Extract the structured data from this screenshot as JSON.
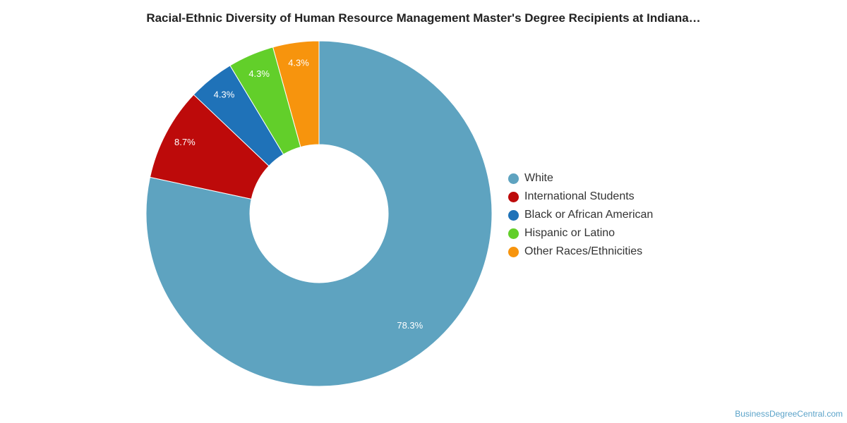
{
  "chart_data": {
    "type": "pie",
    "title": "Racial-Ethnic Diversity of Human Resource Management Master's Degree Recipients at Indiana…",
    "donut": true,
    "legend_position": "right",
    "slices": [
      {
        "label": "White",
        "value": 78.3,
        "display": "78.3%",
        "color": "#5ea3c0"
      },
      {
        "label": "International Students",
        "value": 8.7,
        "display": "8.7%",
        "color": "#bd0a0a"
      },
      {
        "label": "Black or African American",
        "value": 4.3,
        "display": "4.3%",
        "color": "#1f72b8"
      },
      {
        "label": "Hispanic or Latino",
        "value": 4.3,
        "display": "4.3%",
        "color": "#62cf2a"
      },
      {
        "label": "Other Races/Ethnicities",
        "value": 4.3,
        "display": "4.3%",
        "color": "#f7940d"
      }
    ]
  },
  "credit": "BusinessDegreeCentral.com"
}
